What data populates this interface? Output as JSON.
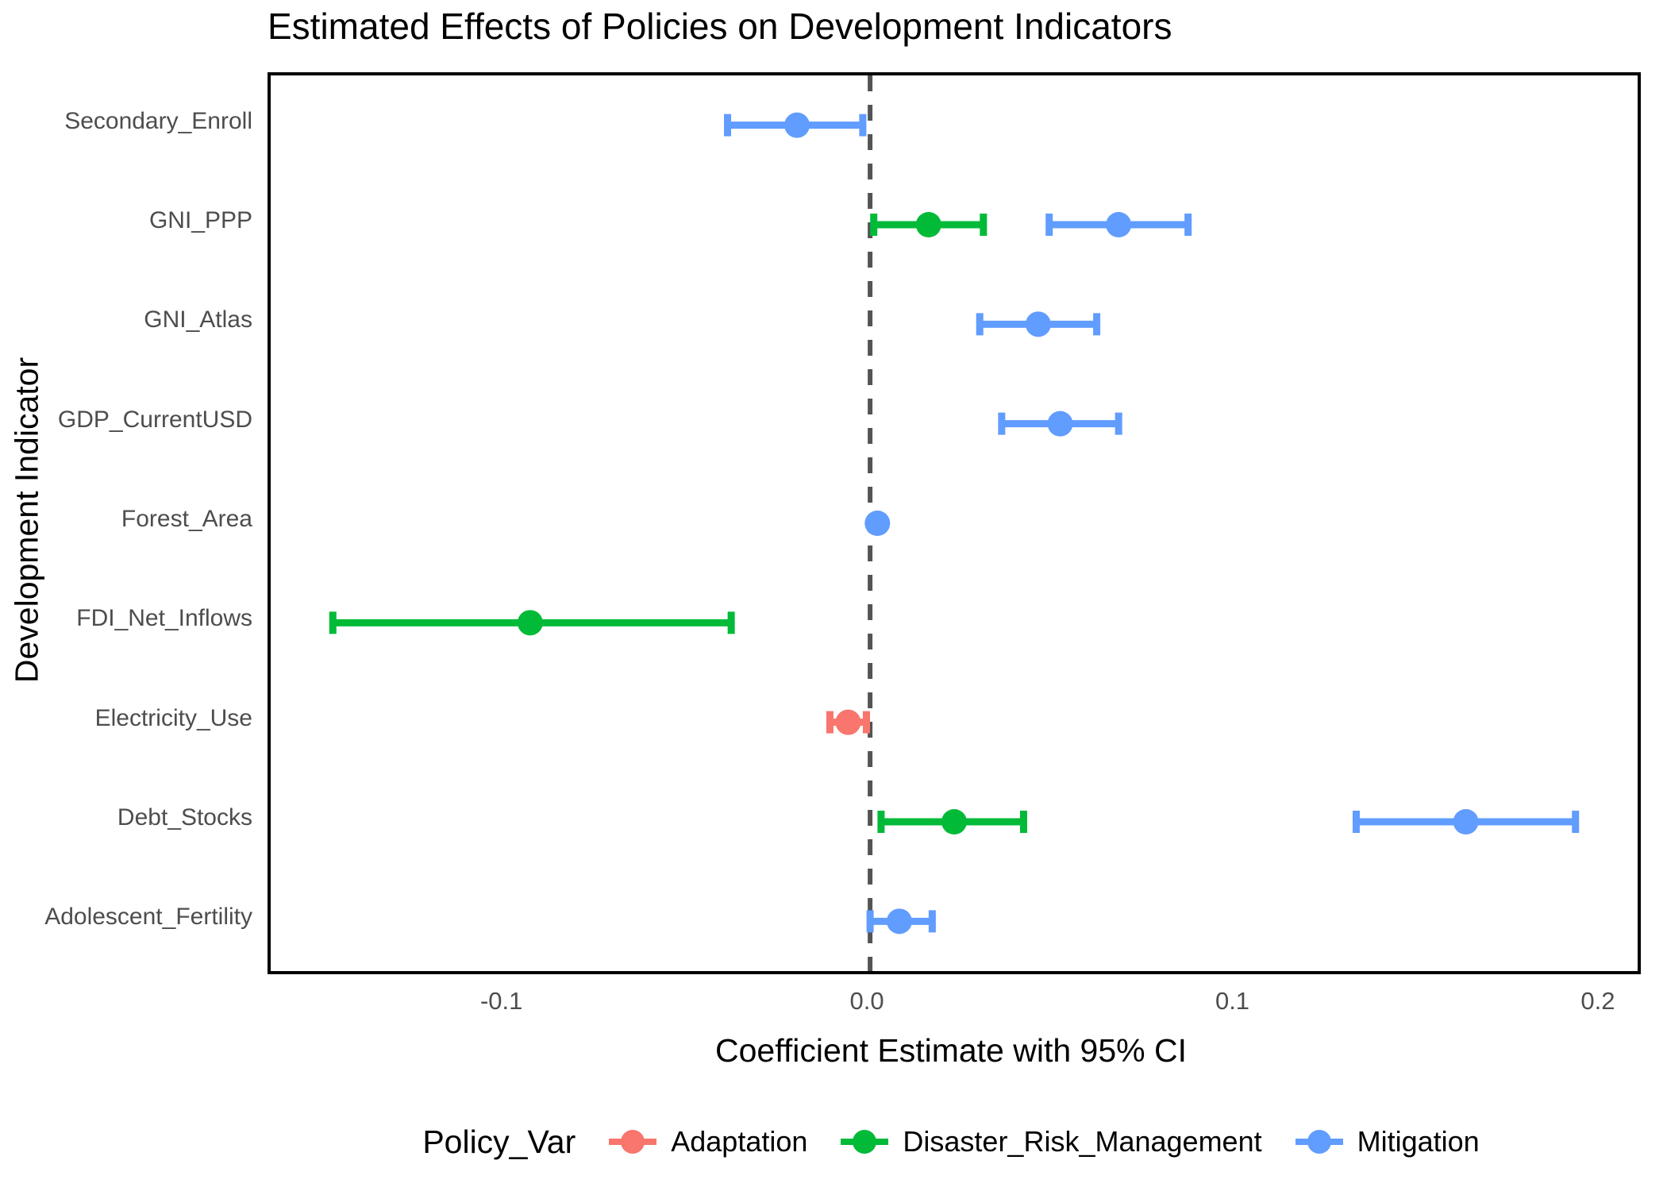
{
  "title": "Estimated Effects of Policies on Development Indicators",
  "axes": {
    "x_label": "Coefficient Estimate with 95% CI",
    "y_label": "Development Indicator",
    "x_ticks": [
      -0.1,
      0.0,
      0.1,
      0.2
    ],
    "x_tick_labels": [
      "-0.1",
      "0.0",
      "0.1",
      "0.2"
    ],
    "x_range": [
      -0.164,
      0.21
    ],
    "grid": "off"
  },
  "legend": {
    "title": "Policy_Var",
    "position": "bottom",
    "items": [
      {
        "name": "Adaptation",
        "label": "Adaptation",
        "color": "#F8766D"
      },
      {
        "name": "Disaster_Risk_Management",
        "label": "Disaster_Risk_Management",
        "color": "#00BA38"
      },
      {
        "name": "Mitigation",
        "label": "Mitigation",
        "color": "#619CFF"
      }
    ]
  },
  "colors": {
    "adaptation": "#F8766D",
    "disaster_risk_management": "#00BA38",
    "mitigation": "#619CFF",
    "zero_line": "#545454",
    "tick_text": "#4D4D4D",
    "panel_border": "#000000"
  },
  "chart_data": {
    "type": "scatter",
    "style": "dot-and-whisker coefficient plot, 95% CI error bars, dashed zero reference line",
    "title": "Estimated Effects of Policies on Development Indicators",
    "xlabel": "Coefficient Estimate with 95% CI",
    "ylabel": "Development Indicator",
    "xlim": [
      -0.164,
      0.21
    ],
    "zero_line": 0.0,
    "categories": [
      "Secondary_Enroll",
      "GNI_PPP",
      "GNI_Atlas",
      "GDP_CurrentUSD",
      "Forest_Area",
      "FDI_Net_Inflows",
      "Electricity_Use",
      "Debt_Stocks",
      "Adolescent_Fertility"
    ],
    "series": [
      {
        "name": "Adaptation",
        "color": "#F8766D",
        "points": [
          {
            "category": "Electricity_Use",
            "estimate": -0.006,
            "ci_low": -0.011,
            "ci_high": -0.001
          }
        ]
      },
      {
        "name": "Disaster_Risk_Management",
        "color": "#00BA38",
        "points": [
          {
            "category": "GNI_PPP",
            "estimate": 0.016,
            "ci_low": 0.001,
            "ci_high": 0.031
          },
          {
            "category": "FDI_Net_Inflows",
            "estimate": -0.093,
            "ci_low": -0.147,
            "ci_high": -0.038
          },
          {
            "category": "Debt_Stocks",
            "estimate": 0.023,
            "ci_low": 0.003,
            "ci_high": 0.042
          }
        ]
      },
      {
        "name": "Mitigation",
        "color": "#619CFF",
        "points": [
          {
            "category": "Secondary_Enroll",
            "estimate": -0.02,
            "ci_low": -0.039,
            "ci_high": -0.002
          },
          {
            "category": "GNI_PPP",
            "estimate": 0.068,
            "ci_low": 0.049,
            "ci_high": 0.087
          },
          {
            "category": "GNI_Atlas",
            "estimate": 0.046,
            "ci_low": 0.03,
            "ci_high": 0.062
          },
          {
            "category": "GDP_CurrentUSD",
            "estimate": 0.052,
            "ci_low": 0.036,
            "ci_high": 0.068
          },
          {
            "category": "Forest_Area",
            "estimate": 0.002,
            "ci_low": -0.001,
            "ci_high": 0.005
          },
          {
            "category": "Debt_Stocks",
            "estimate": 0.163,
            "ci_low": 0.133,
            "ci_high": 0.193
          },
          {
            "category": "Adolescent_Fertility",
            "estimate": 0.008,
            "ci_low": 0.0,
            "ci_high": 0.017
          }
        ]
      }
    ]
  }
}
